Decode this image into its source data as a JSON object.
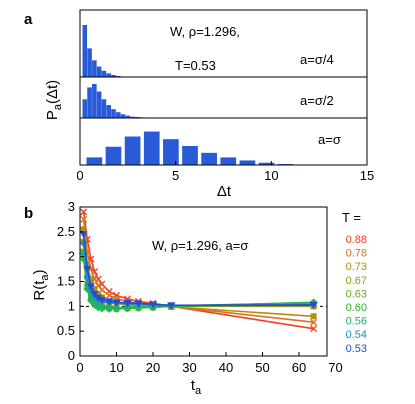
{
  "chart_data": [
    {
      "panel": "a",
      "type": "bar",
      "title": "W, ρ=1.296, T=0.53",
      "xlabel": "Δt",
      "ylabel": "Pa(Δt)",
      "xlim": [
        0,
        15
      ],
      "x_ticks": [
        "0",
        "5",
        "10",
        "15"
      ],
      "series": [
        {
          "name": "a=σ/4",
          "x": [
            0.25,
            0.5,
            0.75,
            1.0,
            1.25,
            1.5,
            1.75,
            2.0
          ],
          "values": [
            1.0,
            0.55,
            0.32,
            0.2,
            0.12,
            0.07,
            0.04,
            0.02
          ]
        },
        {
          "name": "a=σ/2",
          "x": [
            0.25,
            0.5,
            0.75,
            1.0,
            1.25,
            1.5,
            1.75,
            2.0,
            2.25,
            2.5,
            2.75,
            3.0,
            3.25
          ],
          "values": [
            0.55,
            0.9,
            1.0,
            0.78,
            0.55,
            0.38,
            0.26,
            0.17,
            0.11,
            0.07,
            0.04,
            0.03,
            0.02
          ]
        },
        {
          "name": "a=σ",
          "x": [
            0.75,
            1.75,
            2.75,
            3.75,
            4.75,
            5.75,
            6.75,
            7.75,
            8.75,
            9.75,
            10.75
          ],
          "values": [
            0.2,
            0.48,
            0.75,
            0.88,
            0.68,
            0.5,
            0.32,
            0.2,
            0.12,
            0.06,
            0.025
          ]
        }
      ]
    },
    {
      "panel": "b",
      "type": "line",
      "title": "W, ρ=1.296, a=σ",
      "xlabel": "t_a",
      "ylabel": "R(t_a)",
      "xlim": [
        0,
        70
      ],
      "ylim": [
        0,
        3
      ],
      "x_ticks": [
        "0",
        "10",
        "20",
        "30",
        "40",
        "50",
        "60",
        "70"
      ],
      "y_ticks": [
        "0",
        "0.5",
        "1",
        "1.5",
        "2",
        "2.5",
        "3"
      ],
      "reference_line": 1,
      "legend_title": "T =",
      "series": [
        {
          "name": "0.88",
          "color": "#f04020",
          "marker": "x",
          "x": [
            1,
            2,
            3,
            4,
            5,
            6,
            8,
            10,
            13,
            16,
            20,
            25,
            64
          ],
          "y": [
            2.9,
            2.35,
            1.95,
            1.7,
            1.55,
            1.45,
            1.3,
            1.22,
            1.15,
            1.1,
            1.06,
            1.0,
            0.55
          ]
        },
        {
          "name": "0.78",
          "color": "#e07020",
          "marker": "x",
          "x": [
            1,
            2,
            3,
            4,
            5,
            6,
            8,
            10,
            13,
            16,
            20,
            25,
            64
          ],
          "y": [
            2.75,
            2.1,
            1.75,
            1.55,
            1.42,
            1.33,
            1.22,
            1.15,
            1.1,
            1.06,
            1.03,
            1.0,
            0.68
          ]
        },
        {
          "name": "0.73",
          "color": "#b88a10",
          "marker": "square",
          "x": [
            1,
            2,
            3,
            4,
            5,
            6,
            8,
            10,
            13,
            16,
            20,
            25,
            64
          ],
          "y": [
            2.55,
            1.85,
            1.52,
            1.35,
            1.25,
            1.18,
            1.1,
            1.06,
            1.03,
            1.01,
            1.0,
            0.99,
            0.8
          ]
        },
        {
          "name": "0.67",
          "color": "#9a9a10",
          "marker": "square",
          "x": [
            1,
            2,
            3,
            4,
            5,
            6,
            8,
            10,
            13,
            16,
            20,
            25,
            64
          ],
          "y": [
            2.3,
            1.6,
            1.3,
            1.17,
            1.08,
            1.03,
            0.99,
            0.97,
            0.97,
            0.98,
            0.99,
            1.0,
            1.0
          ]
        },
        {
          "name": "0.63",
          "color": "#60b020",
          "marker": "square",
          "x": [
            1,
            2,
            3,
            4,
            5,
            6,
            8,
            10,
            13,
            16,
            20,
            25,
            64
          ],
          "y": [
            2.1,
            1.45,
            1.2,
            1.08,
            1.01,
            0.98,
            0.96,
            0.95,
            0.96,
            0.97,
            0.98,
            1.0,
            1.05
          ]
        },
        {
          "name": "0.60",
          "color": "#20c020",
          "marker": "diamond",
          "x": [
            1,
            2,
            3,
            4,
            5,
            6,
            8,
            10,
            13,
            16,
            20,
            25,
            64
          ],
          "y": [
            1.95,
            1.35,
            1.12,
            1.03,
            0.98,
            0.96,
            0.95,
            0.95,
            0.96,
            0.97,
            0.98,
            1.0,
            1.08
          ]
        },
        {
          "name": "0.56",
          "color": "#20b070",
          "marker": "circle",
          "x": [
            1,
            2,
            3,
            4,
            5,
            6,
            8,
            10,
            13,
            16,
            20,
            25,
            64
          ],
          "y": [
            2.05,
            1.4,
            1.15,
            1.05,
            1.0,
            0.98,
            0.97,
            0.97,
            0.98,
            0.99,
            1.0,
            1.01,
            1.07
          ]
        },
        {
          "name": "0.54",
          "color": "#1a90c0",
          "marker": "triangle",
          "x": [
            1,
            2,
            3,
            4,
            5,
            6,
            8,
            10,
            13,
            16,
            20,
            25,
            64
          ],
          "y": [
            2.25,
            1.55,
            1.3,
            1.18,
            1.12,
            1.09,
            1.07,
            1.06,
            1.05,
            1.04,
            1.03,
            1.02,
            1.02
          ]
        },
        {
          "name": "0.53",
          "color": "#2a4ad0",
          "marker": "triangle",
          "x": [
            1,
            2,
            3,
            4,
            5,
            6,
            8,
            10,
            13,
            16,
            20,
            25,
            64
          ],
          "y": [
            2.45,
            1.75,
            1.4,
            1.25,
            1.17,
            1.13,
            1.1,
            1.08,
            1.07,
            1.06,
            1.04,
            1.02,
            1.03
          ]
        }
      ]
    }
  ]
}
